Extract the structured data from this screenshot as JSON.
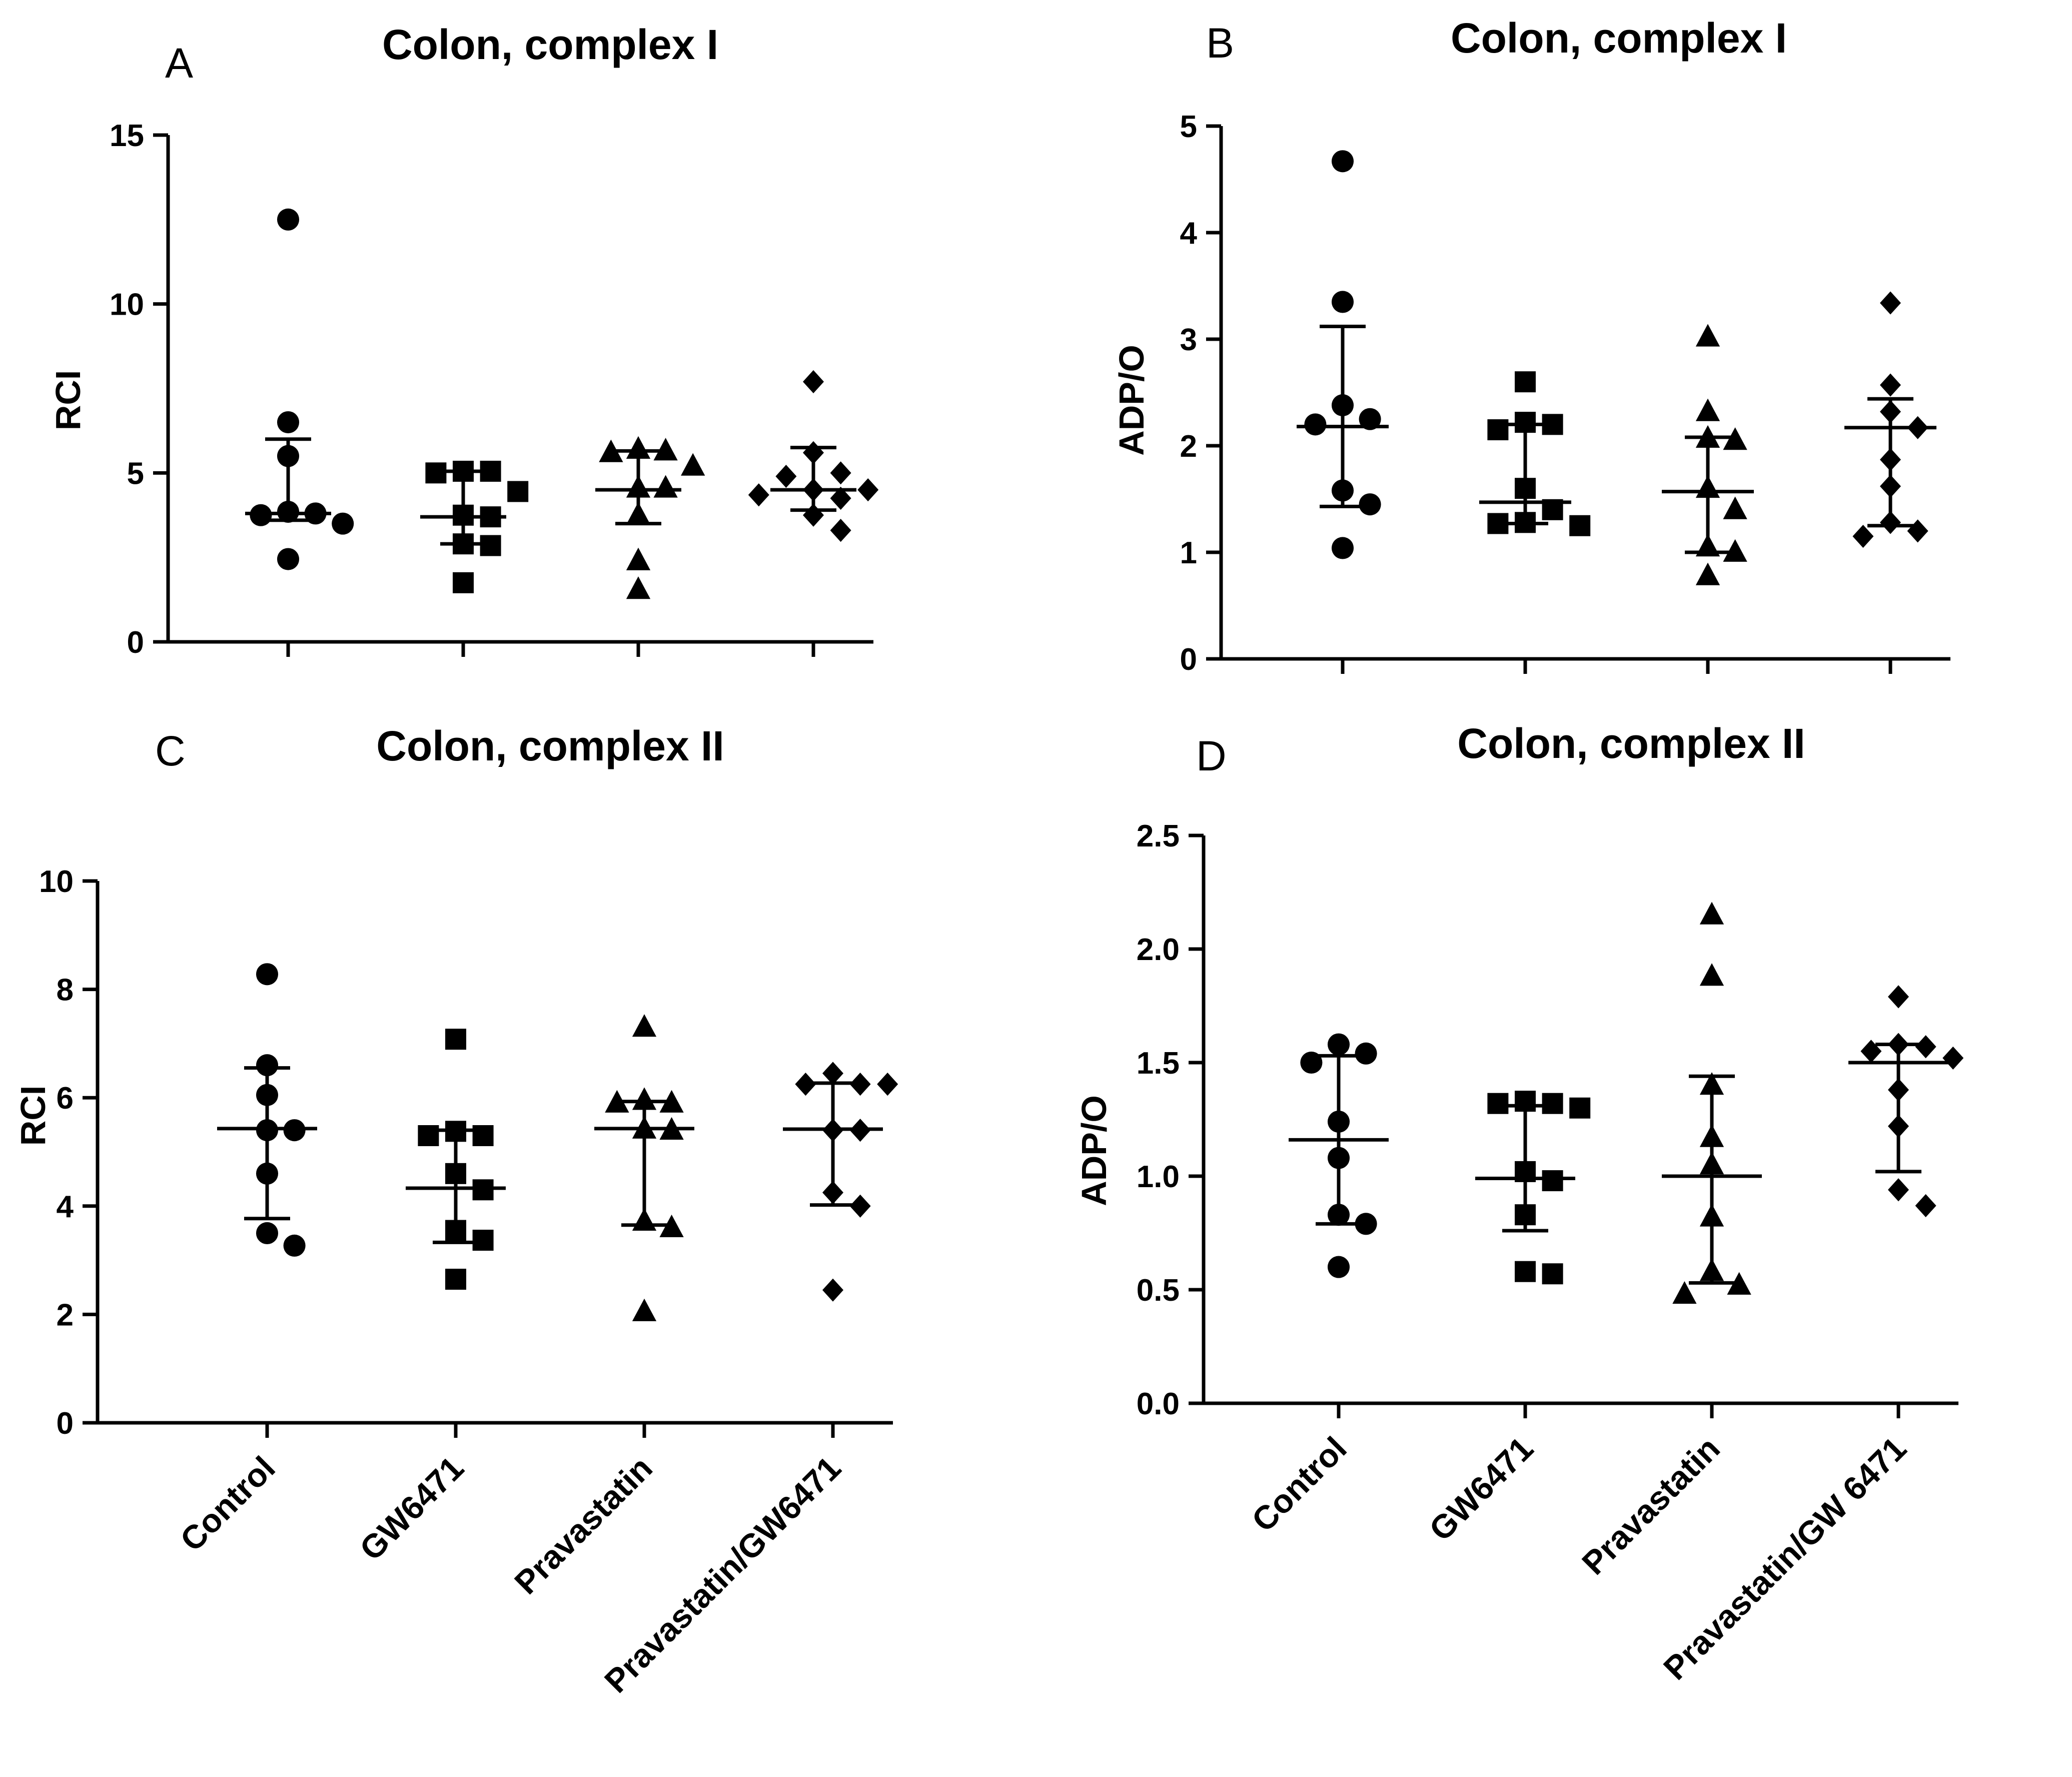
{
  "chart_data": [
    {
      "panel": "A",
      "type": "scatter",
      "title": "Colon, complex I",
      "ylabel": "RCI",
      "xlabel": "",
      "ylim": [
        0,
        15
      ],
      "yticks": [
        0,
        5,
        10,
        15
      ],
      "categories": [
        "Control",
        "GW6471",
        "Pravastatin",
        "Pravastatin/GW6471"
      ],
      "show_category_labels": false,
      "marker_shapes": [
        "circle",
        "square",
        "triangle",
        "diamond"
      ],
      "series": [
        {
          "name": "Control",
          "points": [
            12.5,
            6.5,
            5.5,
            3.85,
            3.8,
            3.75,
            3.5,
            2.45
          ],
          "median": 3.8,
          "q1": 3.6,
          "q3": 6.0
        },
        {
          "name": "GW6471",
          "points": [
            5.05,
            5.05,
            5.0,
            4.45,
            3.75,
            3.7,
            2.9,
            2.85,
            1.75
          ],
          "median": 3.7,
          "q1": 2.9,
          "q3": 5.05
        },
        {
          "name": "Pravastatin",
          "points": [
            5.7,
            5.65,
            5.6,
            5.2,
            4.55,
            4.55,
            3.75,
            2.4,
            1.55
          ],
          "median": 4.5,
          "q1": 3.5,
          "q3": 5.65
        },
        {
          "name": "Pravastatin/GW6471",
          "points": [
            7.7,
            5.6,
            5.0,
            4.9,
            4.5,
            4.5,
            4.35,
            4.25,
            3.75,
            3.3
          ],
          "median": 4.5,
          "q1": 3.9,
          "q3": 5.75
        }
      ]
    },
    {
      "panel": "B",
      "type": "scatter",
      "title": "Colon, complex I",
      "ylabel": "ADP/O",
      "xlabel": "",
      "ylim": [
        0,
        5
      ],
      "yticks": [
        0,
        1,
        2,
        3,
        4,
        5
      ],
      "categories": [
        "Control",
        "GW6471",
        "Pravastatin",
        "Pravastatin/GW6471"
      ],
      "show_category_labels": false,
      "marker_shapes": [
        "circle",
        "square",
        "triangle",
        "diamond"
      ],
      "series": [
        {
          "name": "Control",
          "points": [
            4.67,
            3.35,
            2.38,
            2.25,
            2.2,
            1.58,
            1.45,
            1.04
          ],
          "median": 2.18,
          "q1": 1.43,
          "q3": 3.12
        },
        {
          "name": "GW6471",
          "points": [
            2.6,
            2.22,
            2.2,
            2.15,
            1.6,
            1.4,
            1.28,
            1.27,
            1.25
          ],
          "median": 1.47,
          "q1": 1.27,
          "q3": 2.2
        },
        {
          "name": "Pravastatin",
          "points": [
            3.02,
            2.32,
            2.07,
            2.05,
            1.6,
            1.4,
            1.05,
            1.0,
            0.78
          ],
          "median": 1.57,
          "q1": 1.0,
          "q3": 2.08
        },
        {
          "name": "Pravastatin/GW6471",
          "points": [
            3.34,
            2.57,
            2.32,
            2.17,
            1.87,
            1.62,
            1.28,
            1.2,
            1.15
          ],
          "median": 2.17,
          "q1": 1.25,
          "q3": 2.44
        }
      ]
    },
    {
      "panel": "C",
      "type": "scatter",
      "title": "Colon, complex II",
      "ylabel": "RCI",
      "xlabel": "",
      "ylim": [
        0,
        10
      ],
      "yticks": [
        0,
        2,
        4,
        6,
        8,
        10
      ],
      "categories": [
        "Control",
        "GW6471",
        "Pravastatin",
        "Pravastatin/GW6471"
      ],
      "show_category_labels": true,
      "marker_shapes": [
        "circle",
        "square",
        "triangle",
        "diamond"
      ],
      "series": [
        {
          "name": "Control",
          "points": [
            8.28,
            6.6,
            6.05,
            5.4,
            5.4,
            4.6,
            3.5,
            3.27
          ],
          "median": 5.43,
          "q1": 3.77,
          "q3": 6.55
        },
        {
          "name": "GW6471",
          "points": [
            7.08,
            5.38,
            5.3,
            5.3,
            4.6,
            4.3,
            3.55,
            3.37,
            2.65
          ],
          "median": 4.33,
          "q1": 3.33,
          "q3": 5.4
        },
        {
          "name": "Pravastatin",
          "points": [
            7.3,
            5.95,
            5.9,
            5.9,
            5.42,
            5.4,
            3.72,
            3.6,
            2.05
          ],
          "median": 5.43,
          "q1": 3.65,
          "q3": 5.93
        },
        {
          "name": "Pravastatin/GW6471",
          "points": [
            6.45,
            6.25,
            6.25,
            6.25,
            5.4,
            5.4,
            4.25,
            4.0,
            2.45
          ],
          "median": 5.42,
          "q1": 4.02,
          "q3": 6.27
        }
      ]
    },
    {
      "panel": "D",
      "type": "scatter",
      "title": "Colon, complex II",
      "ylabel": "ADP/O",
      "xlabel": "",
      "ylim": [
        0,
        2.5
      ],
      "yticks": [
        "0.0",
        "0.5",
        "1.0",
        "1.5",
        "2.0",
        "2.5"
      ],
      "categories": [
        "Control",
        "GW6471",
        "Pravastatin",
        "Pravastatin/GW 6471"
      ],
      "show_category_labels": true,
      "marker_shapes": [
        "circle",
        "square",
        "triangle",
        "diamond"
      ],
      "series": [
        {
          "name": "Control",
          "points": [
            1.58,
            1.54,
            1.5,
            1.24,
            1.08,
            0.83,
            0.79,
            0.6
          ],
          "median": 1.16,
          "q1": 0.79,
          "q3": 1.53
        },
        {
          "name": "GW6471",
          "points": [
            1.33,
            1.32,
            1.32,
            1.3,
            1.02,
            0.98,
            0.83,
            0.58,
            0.57
          ],
          "median": 0.99,
          "q1": 0.76,
          "q3": 1.31
        },
        {
          "name": "Pravastatin",
          "points": [
            2.15,
            1.88,
            1.4,
            1.17,
            1.05,
            0.82,
            0.58,
            0.52,
            0.48
          ],
          "median": 1.0,
          "q1": 0.53,
          "q3": 1.44
        },
        {
          "name": "Pravastatin/GW 6471",
          "points": [
            1.79,
            1.58,
            1.57,
            1.55,
            1.52,
            1.38,
            1.22,
            0.94,
            0.87
          ],
          "median": 1.5,
          "q1": 1.02,
          "q3": 1.58
        }
      ]
    }
  ]
}
